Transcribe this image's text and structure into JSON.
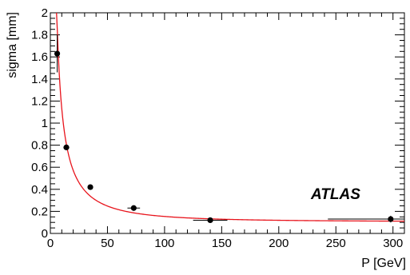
{
  "chart_data": {
    "type": "scatter",
    "xlabel": "P  [GeV]",
    "ylabel": "sigma  [mm]",
    "xlim": [
      0,
      310
    ],
    "ylim": [
      0,
      2
    ],
    "x_ticks": [
      "0",
      "50",
      "100",
      "150",
      "200",
      "250",
      "300"
    ],
    "y_ticks": [
      "0",
      "0.2",
      "0.4",
      "0.6",
      "0.8",
      "1",
      "1.2",
      "1.4",
      "1.6",
      "1.8",
      "2"
    ],
    "annotation": "ATLAS",
    "grid": false,
    "marker_color": "#000000",
    "fit_color": "#e8141c",
    "points": [
      {
        "x": 6,
        "y": 1.63,
        "xerr": 1.5,
        "yerr": 0.17
      },
      {
        "x": 14,
        "y": 0.78,
        "xerr": 2.5,
        "yerr": 0.02
      },
      {
        "x": 35,
        "y": 0.42,
        "xerr": 1.5,
        "yerr": 0.01
      },
      {
        "x": 73,
        "y": 0.23,
        "xerr": 5.5,
        "yerr": 0.02
      },
      {
        "x": 140,
        "y": 0.12,
        "xerr": 15,
        "yerr": 0.01
      },
      {
        "x": 298,
        "y": 0.13,
        "xerr": 55,
        "yerr": 0.03
      }
    ],
    "fit": {
      "function": "sqrt((a/P)^2 + c^2)",
      "a": 11.25,
      "c": 0.105,
      "x_from": 5.4,
      "x_to": 310
    }
  }
}
